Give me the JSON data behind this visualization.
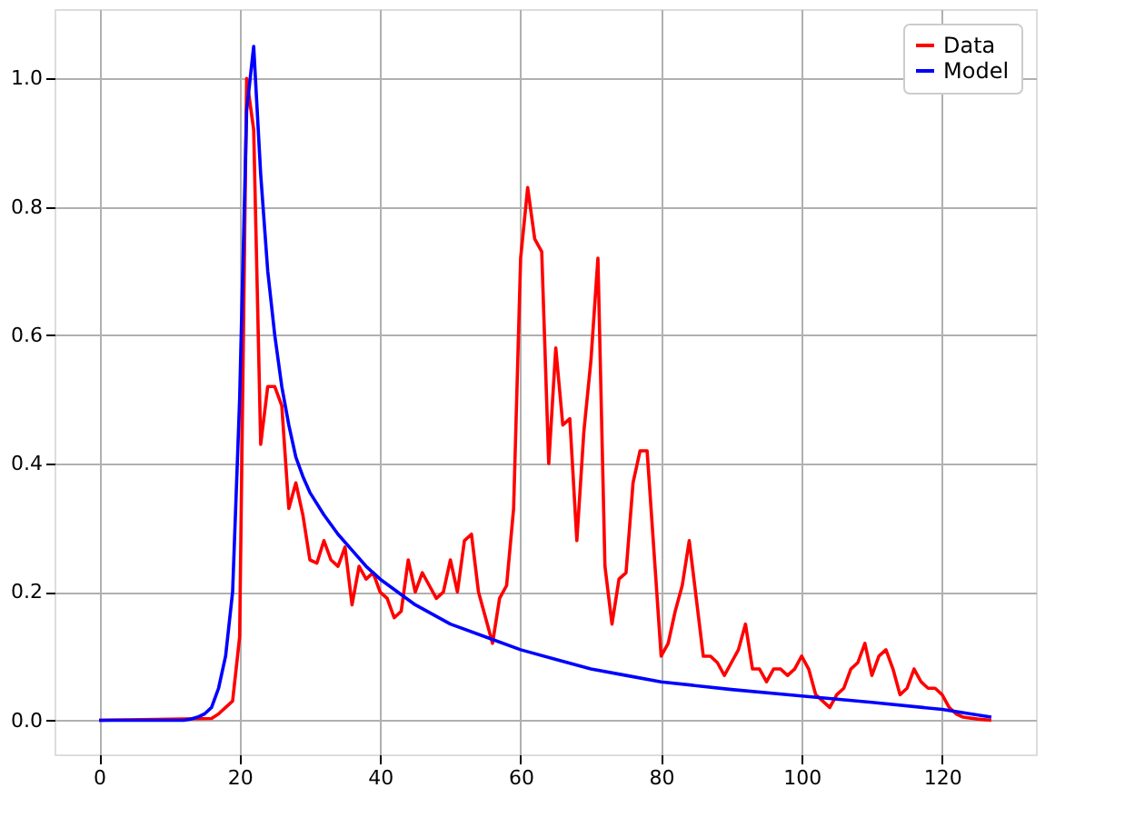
{
  "chart_data": {
    "type": "line",
    "xlim": [
      -6.35,
      133.35
    ],
    "ylim": [
      -0.053,
      1.108
    ],
    "xticks": [
      0,
      20,
      40,
      60,
      80,
      100,
      120
    ],
    "yticks": [
      {
        "value": 0,
        "label": "0.0"
      },
      0.2,
      0.4,
      0.6,
      0.8,
      {
        "value": 1,
        "label": "1.0"
      }
    ],
    "grid": true,
    "legend": "top right",
    "series": [
      {
        "name": "Data",
        "color": "#ff0000",
        "x": [
          0,
          16,
          17,
          18,
          19,
          20,
          21,
          22,
          23,
          24,
          25,
          26,
          27,
          28,
          29,
          30,
          31,
          32,
          33,
          34,
          35,
          36,
          37,
          38,
          39,
          40,
          41,
          42,
          43,
          44,
          45,
          46,
          47,
          48,
          49,
          50,
          51,
          52,
          53,
          54,
          55,
          56,
          57,
          58,
          59,
          60,
          61,
          62,
          63,
          64,
          65,
          66,
          67,
          68,
          69,
          70,
          71,
          72,
          73,
          74,
          75,
          76,
          77,
          78,
          79,
          80,
          81,
          82,
          83,
          84,
          85,
          86,
          87,
          88,
          89,
          90,
          91,
          92,
          93,
          94,
          95,
          96,
          97,
          98,
          99,
          100,
          101,
          102,
          103,
          104,
          105,
          106,
          107,
          108,
          109,
          110,
          111,
          112,
          113,
          114,
          115,
          116,
          117,
          118,
          119,
          120,
          121,
          122,
          123,
          125,
          127
        ],
        "values": [
          0,
          0.003,
          0.01,
          0.02,
          0.03,
          0.13,
          1.0,
          0.92,
          0.43,
          0.52,
          0.52,
          0.49,
          0.33,
          0.37,
          0.32,
          0.25,
          0.245,
          0.28,
          0.25,
          0.24,
          0.27,
          0.18,
          0.24,
          0.22,
          0.23,
          0.2,
          0.19,
          0.16,
          0.17,
          0.25,
          0.2,
          0.23,
          0.21,
          0.19,
          0.2,
          0.25,
          0.2,
          0.28,
          0.29,
          0.2,
          0.16,
          0.12,
          0.19,
          0.21,
          0.33,
          0.72,
          0.83,
          0.75,
          0.73,
          0.4,
          0.58,
          0.46,
          0.47,
          0.28,
          0.45,
          0.56,
          0.72,
          0.24,
          0.15,
          0.22,
          0.23,
          0.37,
          0.42,
          0.42,
          0.26,
          0.1,
          0.12,
          0.17,
          0.21,
          0.28,
          0.19,
          0.1,
          0.1,
          0.09,
          0.07,
          0.09,
          0.11,
          0.15,
          0.08,
          0.08,
          0.06,
          0.08,
          0.08,
          0.07,
          0.08,
          0.1,
          0.08,
          0.04,
          0.03,
          0.02,
          0.04,
          0.05,
          0.08,
          0.09,
          0.12,
          0.07,
          0.1,
          0.11,
          0.08,
          0.04,
          0.05,
          0.08,
          0.06,
          0.05,
          0.05,
          0.04,
          0.02,
          0.01,
          0.005,
          0.002,
          0
        ]
      },
      {
        "name": "Model",
        "color": "#0000ff",
        "x": [
          0,
          12,
          13,
          14,
          15,
          16,
          17,
          18,
          19,
          20,
          21,
          22,
          23,
          24,
          25,
          26,
          27,
          28,
          29,
          30,
          32,
          34,
          36,
          38,
          40,
          45,
          50,
          55,
          60,
          65,
          70,
          75,
          80,
          90,
          100,
          110,
          120,
          127
        ],
        "values": [
          0,
          0,
          0.002,
          0.005,
          0.01,
          0.02,
          0.05,
          0.1,
          0.2,
          0.5,
          0.95,
          1.05,
          0.85,
          0.7,
          0.6,
          0.52,
          0.46,
          0.41,
          0.38,
          0.355,
          0.32,
          0.29,
          0.265,
          0.24,
          0.22,
          0.18,
          0.15,
          0.13,
          0.11,
          0.095,
          0.08,
          0.07,
          0.06,
          0.048,
          0.038,
          0.028,
          0.017,
          0.005
        ]
      }
    ]
  }
}
